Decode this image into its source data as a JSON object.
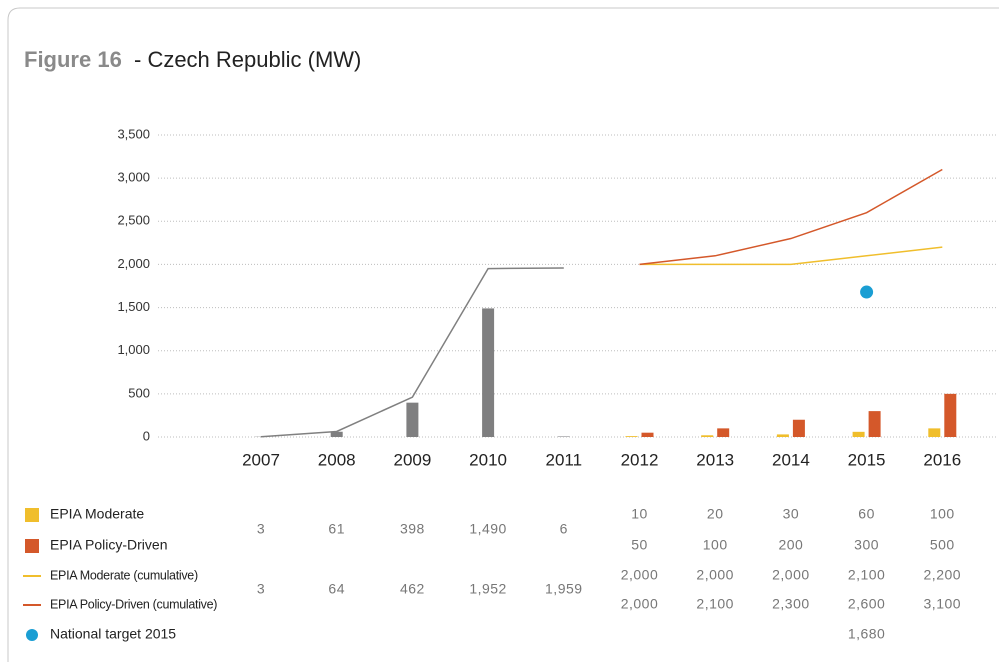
{
  "chart_data": {
    "type": "bar",
    "figure_label": "Figure 16",
    "title": "- Czech Republic (MW)",
    "categories": [
      "2007",
      "2008",
      "2009",
      "2010",
      "2011",
      "2012",
      "2013",
      "2014",
      "2015",
      "2016"
    ],
    "ylim": [
      0,
      3500
    ],
    "yticks": [
      0,
      500,
      {
        "value": 1000,
        "label": "1,000"
      },
      {
        "value": 1500,
        "label": "1,500"
      },
      {
        "value": 2000,
        "label": "2,000"
      },
      {
        "value": 2500,
        "label": "2,500"
      },
      {
        "value": 3000,
        "label": "3,000"
      },
      {
        "value": 3500,
        "label": "3,500"
      }
    ],
    "grid": true,
    "series": [
      {
        "name": "EPIA Moderate",
        "type": "bar",
        "color": "#f0be2c",
        "values": [
          null,
          null,
          null,
          null,
          null,
          10,
          20,
          30,
          60,
          100
        ]
      },
      {
        "name": "EPIA Policy-Driven",
        "type": "bar",
        "color": "#d4582a",
        "values": [
          null,
          null,
          null,
          null,
          null,
          50,
          100,
          200,
          300,
          500
        ]
      },
      {
        "type": "bar",
        "color": "#7f7f80",
        "values": [
          3,
          61,
          398,
          1490,
          6,
          null,
          null,
          null,
          null,
          null
        ],
        "value_labels": [
          "3",
          "61",
          "398",
          "1,490",
          "6",
          null,
          null,
          null,
          null,
          null
        ]
      },
      {
        "name": "EPIA Moderate (cumulative)",
        "type": "line",
        "color": "#f0be2c",
        "values": [
          null,
          null,
          null,
          null,
          null,
          2000,
          2000,
          2000,
          2100,
          2200
        ],
        "value_labels": [
          null,
          null,
          null,
          null,
          null,
          "2,000",
          "2,000",
          "2,000",
          "2,100",
          "2,200"
        ]
      },
      {
        "name": "EPIA Policy-Driven (cumulative)",
        "type": "line",
        "color": "#d4582a",
        "values": [
          null,
          null,
          null,
          null,
          null,
          2000,
          2100,
          2300,
          2600,
          3100
        ],
        "value_labels": [
          null,
          null,
          null,
          null,
          null,
          "2,000",
          "2,100",
          "2,300",
          "2,600",
          "3,100"
        ]
      },
      {
        "type": "line",
        "color": "#808080",
        "values": [
          3,
          64,
          462,
          1952,
          1959,
          null,
          null,
          null,
          null,
          null
        ],
        "value_labels": [
          "3",
          "64",
          "462",
          "1,952",
          "1,959",
          null,
          null,
          null,
          null,
          null
        ]
      },
      {
        "name": "National target 2015",
        "type": "scatter",
        "color": "#1a9ed3",
        "values": [
          null,
          null,
          null,
          null,
          null,
          null,
          null,
          null,
          1680,
          null
        ],
        "value_labels": [
          null,
          null,
          null,
          null,
          null,
          null,
          null,
          null,
          "1,680",
          null
        ]
      }
    ]
  }
}
